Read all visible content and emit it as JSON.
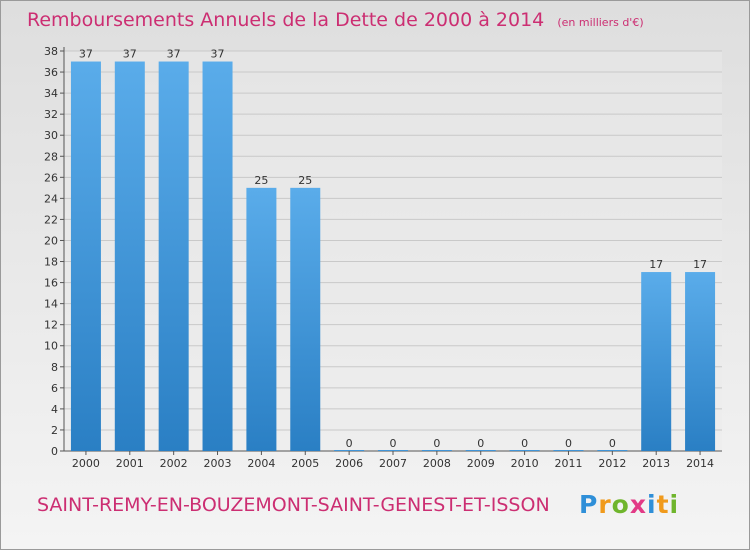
{
  "header": {
    "title": "Remboursements Annuels de la Dette de 2000 à 2014",
    "unit": "(en milliers d'€)"
  },
  "footer": {
    "commune": "SAINT-REMY-EN-BOUZEMONT-SAINT-GENEST-ET-ISSON",
    "brand_letters": [
      "P",
      "r",
      "o",
      "x",
      "i",
      "t",
      "i"
    ],
    "brand_colors": [
      "#2f8fd8",
      "#f09a1c",
      "#6fb52c",
      "#e23a86",
      "#2f8fd8",
      "#f09a1c",
      "#6fb52c"
    ]
  },
  "colors": {
    "title": "#cc2e72",
    "bar_top": "#5aacea",
    "bar_bottom": "#2a7fc4",
    "axis": "#555555"
  },
  "chart_data": {
    "type": "bar",
    "title": "Remboursements Annuels de la Dette de 2000 à 2014",
    "xlabel": "",
    "ylabel": "(en milliers d'€)",
    "categories": [
      "2000",
      "2001",
      "2002",
      "2003",
      "2004",
      "2005",
      "2006",
      "2007",
      "2008",
      "2009",
      "2010",
      "2011",
      "2012",
      "2013",
      "2014"
    ],
    "values": [
      37,
      37,
      37,
      37,
      25,
      25,
      0,
      0,
      0,
      0,
      0,
      0,
      0,
      17,
      17
    ],
    "labels": [
      "37",
      "37",
      "37",
      "37",
      "25",
      "25",
      "0",
      "0",
      "0",
      "0",
      "0",
      "0",
      "0",
      "17",
      "17"
    ],
    "ylim": [
      0,
      38
    ],
    "yticks": [
      "0",
      "2",
      "4",
      "6",
      "8",
      "10",
      "12",
      "14",
      "16",
      "18",
      "20",
      "22",
      "24",
      "26",
      "28",
      "30",
      "32",
      "34",
      "36",
      "38"
    ],
    "grid": true
  }
}
